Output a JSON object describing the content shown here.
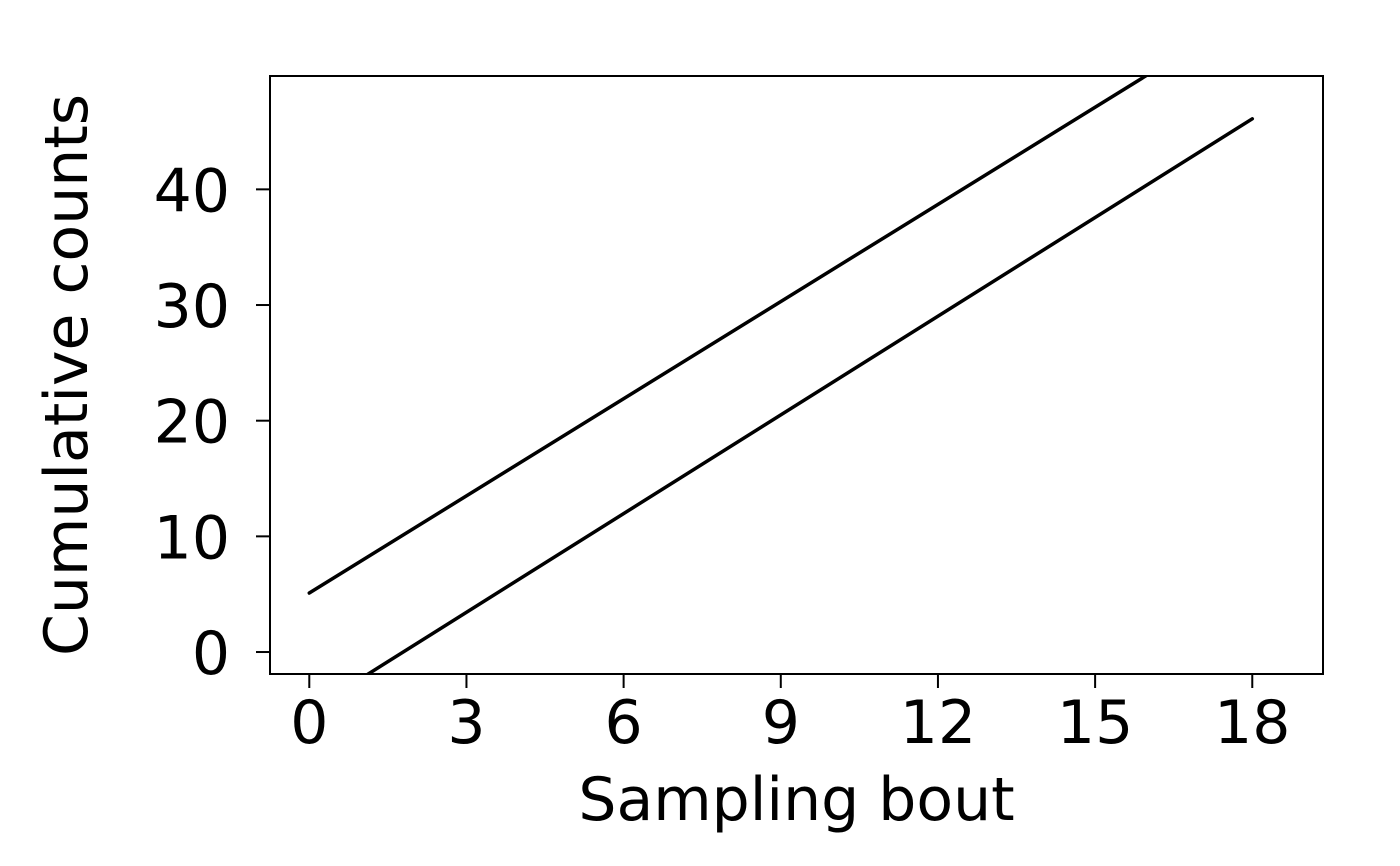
{
  "chart_data": {
    "type": "line",
    "title": "",
    "xlabel": "Sampling bout",
    "ylabel": "Cumulative counts",
    "xlim": [
      -0.75,
      19.35
    ],
    "ylim": [
      -1.9,
      49.8
    ],
    "x_ticks": [
      0,
      3,
      6,
      9,
      12,
      15,
      18
    ],
    "y_ticks": [
      0,
      10,
      20,
      30,
      40
    ],
    "grid": false,
    "legend": "none",
    "colors": {
      "line": "#000000",
      "frame": "#000000",
      "background": "#ffffff"
    },
    "series": [
      {
        "x": [
          0,
          18
        ],
        "y": [
          5.1,
          55.5
        ]
      },
      {
        "x": [
          0,
          18
        ],
        "y": [
          -5.1,
          46.1
        ]
      }
    ]
  }
}
